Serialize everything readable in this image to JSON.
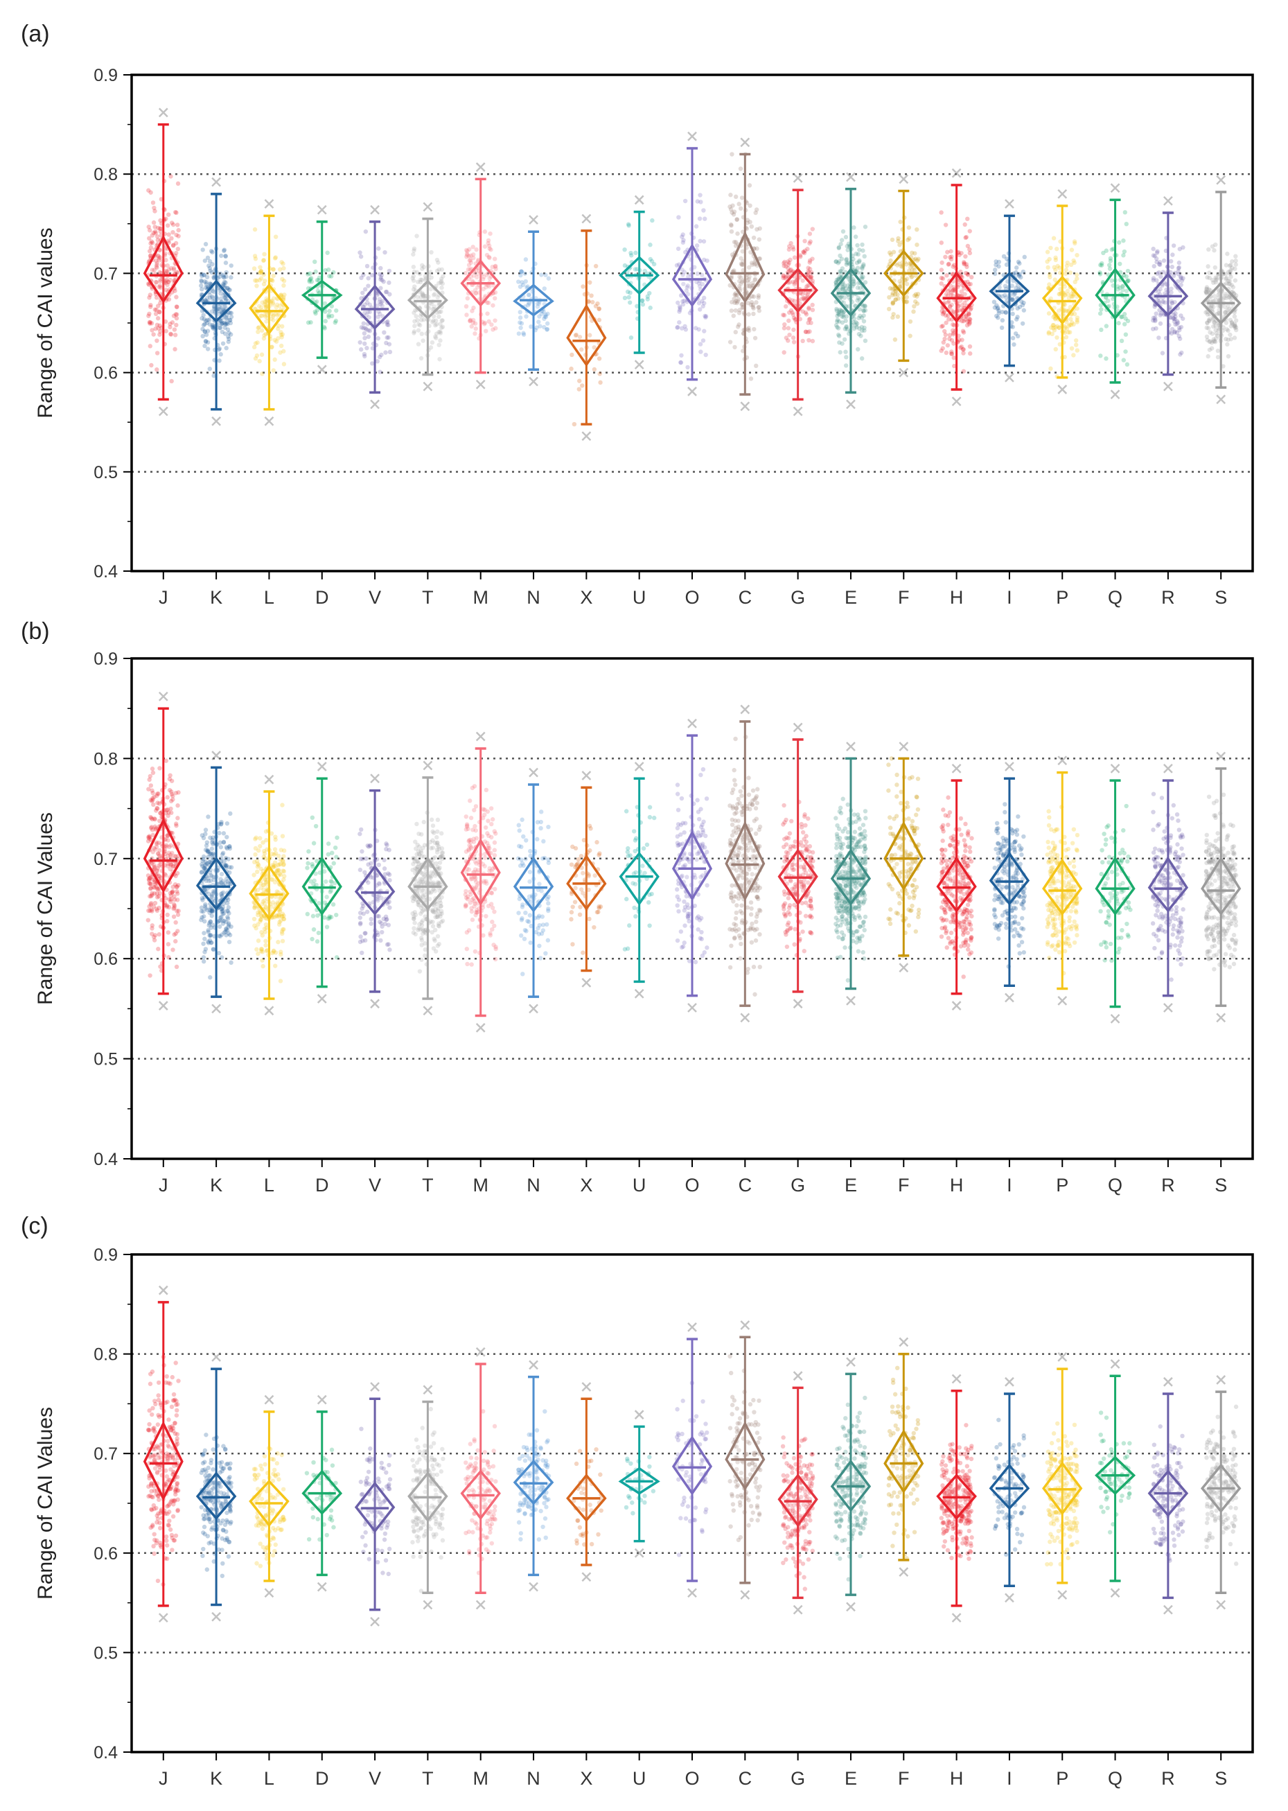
{
  "figure": {
    "panel_labels": [
      "(a)",
      "(b)",
      "(c)"
    ]
  },
  "chart_data": [
    {
      "type": "box",
      "panel": "(a)",
      "title": "",
      "xlabel": "",
      "ylabel": "Range of CAI values",
      "ylim": [
        0.4,
        0.9
      ],
      "yticks": [
        "0.4",
        "0.5",
        "0.6",
        "0.7",
        "0.8",
        "0.9"
      ],
      "reference_lines": [
        0.5,
        0.6,
        0.7,
        0.8
      ],
      "categories": [
        "J",
        "K",
        "L",
        "D",
        "V",
        "T",
        "M",
        "N",
        "X",
        "U",
        "O",
        "C",
        "G",
        "E",
        "F",
        "H",
        "I",
        "P",
        "Q",
        "R",
        "S"
      ],
      "colors": [
        "#e8202a",
        "#1f5f9a",
        "#f5c518",
        "#1aab6b",
        "#6a5fa8",
        "#a9a9a9",
        "#f46a78",
        "#4f8fcf",
        "#d7651c",
        "#11a59e",
        "#7b6cc0",
        "#9a7e74",
        "#e5343f",
        "#3f8e86",
        "#c8960c",
        "#e8202a",
        "#1f5f9a",
        "#f5c518",
        "#1aab6b",
        "#6a5fa8",
        "#9b9b9b"
      ],
      "median": [
        0.698,
        0.67,
        0.662,
        0.678,
        0.664,
        0.672,
        0.69,
        0.673,
        0.632,
        0.698,
        0.694,
        0.7,
        0.683,
        0.68,
        0.7,
        0.675,
        0.682,
        0.672,
        0.678,
        0.677,
        0.67
      ],
      "q1": [
        0.672,
        0.652,
        0.64,
        0.663,
        0.645,
        0.655,
        0.668,
        0.658,
        0.608,
        0.68,
        0.668,
        0.672,
        0.662,
        0.658,
        0.678,
        0.652,
        0.665,
        0.65,
        0.655,
        0.658,
        0.65
      ],
      "q3": [
        0.736,
        0.692,
        0.688,
        0.692,
        0.687,
        0.692,
        0.712,
        0.688,
        0.667,
        0.716,
        0.728,
        0.74,
        0.704,
        0.704,
        0.722,
        0.7,
        0.7,
        0.696,
        0.704,
        0.699,
        0.69
      ],
      "whisker_low": [
        0.573,
        0.563,
        0.563,
        0.615,
        0.58,
        0.598,
        0.6,
        0.603,
        0.548,
        0.62,
        0.593,
        0.578,
        0.573,
        0.58,
        0.612,
        0.583,
        0.607,
        0.595,
        0.59,
        0.598,
        0.585
      ],
      "whisker_high": [
        0.85,
        0.78,
        0.758,
        0.752,
        0.752,
        0.755,
        0.795,
        0.742,
        0.743,
        0.762,
        0.826,
        0.82,
        0.784,
        0.785,
        0.783,
        0.789,
        0.758,
        0.768,
        0.774,
        0.761,
        0.782
      ],
      "mean": [
        0.7,
        0.67,
        0.665,
        0.678,
        0.664,
        0.673,
        0.69,
        0.672,
        0.635,
        0.698,
        0.694,
        0.699,
        0.683,
        0.68,
        0.7,
        0.675,
        0.682,
        0.675,
        0.678,
        0.677,
        0.67
      ],
      "n_points": [
        230,
        230,
        160,
        60,
        110,
        150,
        130,
        70,
        40,
        50,
        100,
        190,
        170,
        230,
        120,
        210,
        100,
        160,
        90,
        150,
        230
      ]
    },
    {
      "type": "box",
      "panel": "(b)",
      "title": "",
      "xlabel": "",
      "ylabel": "Range of CAI Values",
      "ylim": [
        0.4,
        0.9
      ],
      "yticks": [
        "0.4",
        "0.5",
        "0.6",
        "0.7",
        "0.8",
        "0.9"
      ],
      "reference_lines": [
        0.5,
        0.6,
        0.7,
        0.8
      ],
      "categories": [
        "J",
        "K",
        "L",
        "D",
        "V",
        "T",
        "M",
        "N",
        "X",
        "U",
        "O",
        "C",
        "G",
        "E",
        "F",
        "H",
        "I",
        "P",
        "Q",
        "R",
        "S"
      ],
      "colors": [
        "#e8202a",
        "#1f5f9a",
        "#f5c518",
        "#1aab6b",
        "#6a5fa8",
        "#a9a9a9",
        "#f46a78",
        "#4f8fcf",
        "#d7651c",
        "#11a59e",
        "#7b6cc0",
        "#9a7e74",
        "#e5343f",
        "#3f8e86",
        "#c8960c",
        "#e8202a",
        "#1f5f9a",
        "#f5c518",
        "#1aab6b",
        "#6a5fa8",
        "#9b9b9b"
      ],
      "median": [
        0.698,
        0.672,
        0.664,
        0.671,
        0.666,
        0.672,
        0.684,
        0.671,
        0.675,
        0.682,
        0.69,
        0.694,
        0.681,
        0.68,
        0.7,
        0.671,
        0.677,
        0.668,
        0.67,
        0.67,
        0.668
      ],
      "q1": [
        0.668,
        0.65,
        0.64,
        0.645,
        0.645,
        0.65,
        0.655,
        0.648,
        0.65,
        0.655,
        0.66,
        0.66,
        0.655,
        0.655,
        0.67,
        0.648,
        0.655,
        0.645,
        0.645,
        0.648,
        0.645
      ],
      "q3": [
        0.738,
        0.7,
        0.692,
        0.7,
        0.692,
        0.7,
        0.718,
        0.7,
        0.702,
        0.705,
        0.726,
        0.735,
        0.708,
        0.708,
        0.735,
        0.7,
        0.705,
        0.698,
        0.7,
        0.7,
        0.7
      ],
      "whisker_low": [
        0.565,
        0.562,
        0.56,
        0.572,
        0.567,
        0.56,
        0.543,
        0.562,
        0.588,
        0.577,
        0.563,
        0.553,
        0.567,
        0.57,
        0.603,
        0.565,
        0.573,
        0.57,
        0.552,
        0.563,
        0.553
      ],
      "whisker_high": [
        0.85,
        0.791,
        0.767,
        0.78,
        0.768,
        0.781,
        0.81,
        0.774,
        0.771,
        0.78,
        0.823,
        0.837,
        0.819,
        0.8,
        0.8,
        0.778,
        0.78,
        0.786,
        0.778,
        0.778,
        0.79
      ],
      "mean": [
        0.7,
        0.673,
        0.665,
        0.672,
        0.667,
        0.672,
        0.686,
        0.672,
        0.675,
        0.682,
        0.69,
        0.695,
        0.682,
        0.68,
        0.7,
        0.672,
        0.678,
        0.67,
        0.67,
        0.671,
        0.67
      ],
      "n_points": [
        320,
        280,
        250,
        70,
        120,
        300,
        190,
        100,
        60,
        50,
        150,
        250,
        180,
        380,
        150,
        270,
        200,
        230,
        90,
        200,
        320
      ]
    },
    {
      "type": "box",
      "panel": "(c)",
      "title": "",
      "xlabel": "",
      "ylabel": "Range of CAI Values",
      "ylim": [
        0.4,
        0.9
      ],
      "yticks": [
        "0.4",
        "0.5",
        "0.6",
        "0.7",
        "0.8",
        "0.9"
      ],
      "reference_lines": [
        0.5,
        0.6,
        0.7,
        0.8
      ],
      "categories": [
        "J",
        "K",
        "L",
        "D",
        "V",
        "T",
        "M",
        "N",
        "X",
        "U",
        "O",
        "C",
        "G",
        "E",
        "F",
        "H",
        "I",
        "P",
        "Q",
        "R",
        "S"
      ],
      "colors": [
        "#e8202a",
        "#1f5f9a",
        "#f5c518",
        "#1aab6b",
        "#6a5fa8",
        "#a9a9a9",
        "#f46a78",
        "#4f8fcf",
        "#d7651c",
        "#11a59e",
        "#7b6cc0",
        "#9a7e74",
        "#e5343f",
        "#3f8e86",
        "#c8960c",
        "#e8202a",
        "#1f5f9a",
        "#f5c518",
        "#1aab6b",
        "#6a5fa8",
        "#9b9b9b"
      ],
      "median": [
        0.69,
        0.656,
        0.65,
        0.66,
        0.645,
        0.656,
        0.658,
        0.67,
        0.655,
        0.672,
        0.686,
        0.694,
        0.652,
        0.667,
        0.69,
        0.656,
        0.665,
        0.664,
        0.678,
        0.66,
        0.665
      ],
      "q1": [
        0.655,
        0.635,
        0.628,
        0.64,
        0.622,
        0.633,
        0.635,
        0.65,
        0.633,
        0.66,
        0.66,
        0.665,
        0.628,
        0.643,
        0.662,
        0.635,
        0.645,
        0.64,
        0.66,
        0.638,
        0.642
      ],
      "q3": [
        0.73,
        0.68,
        0.672,
        0.682,
        0.67,
        0.68,
        0.682,
        0.692,
        0.678,
        0.685,
        0.716,
        0.73,
        0.678,
        0.692,
        0.722,
        0.678,
        0.688,
        0.69,
        0.696,
        0.682,
        0.688
      ],
      "whisker_low": [
        0.547,
        0.548,
        0.572,
        0.578,
        0.543,
        0.56,
        0.56,
        0.578,
        0.588,
        0.612,
        0.572,
        0.57,
        0.555,
        0.558,
        0.593,
        0.547,
        0.567,
        0.57,
        0.572,
        0.555,
        0.56
      ],
      "whisker_high": [
        0.852,
        0.785,
        0.742,
        0.742,
        0.755,
        0.752,
        0.79,
        0.777,
        0.755,
        0.727,
        0.815,
        0.817,
        0.766,
        0.78,
        0.8,
        0.763,
        0.76,
        0.785,
        0.778,
        0.76,
        0.762
      ],
      "mean": [
        0.692,
        0.657,
        0.652,
        0.66,
        0.646,
        0.657,
        0.66,
        0.671,
        0.655,
        0.672,
        0.687,
        0.694,
        0.654,
        0.667,
        0.69,
        0.657,
        0.665,
        0.665,
        0.678,
        0.66,
        0.665
      ],
      "n_points": [
        260,
        200,
        110,
        50,
        90,
        150,
        120,
        120,
        40,
        30,
        70,
        120,
        200,
        200,
        120,
        250,
        100,
        200,
        70,
        140,
        180
      ]
    }
  ]
}
